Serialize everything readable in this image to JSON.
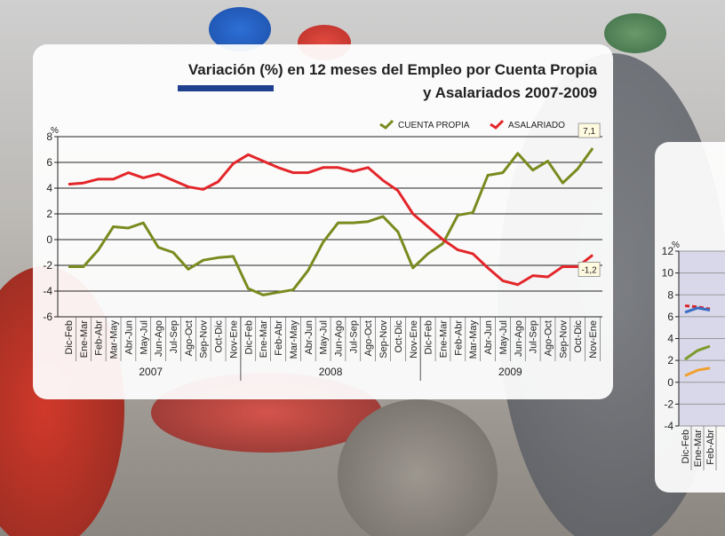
{
  "chart_data": [
    {
      "type": "line",
      "title": "Variación (%) en 12 meses del Empleo por Cuenta Propia",
      "subtitle": "y Asalariados 2007-2009",
      "y_unit": "%",
      "categories": [
        "Dic-Feb",
        "Ene-Mar",
        "Feb-Abr",
        "Mar-May",
        "Abr-Jun",
        "May-Jul",
        "Jun-Ago",
        "Jul-Sep",
        "Ago-Oct",
        "Sep-Nov",
        "Oct-Dic",
        "Nov-Ene",
        "Dic-Feb",
        "Ene-Mar",
        "Feb-Abr",
        "Mar-May",
        "Abr-Jun",
        "May-Jul",
        "Jun-Ago",
        "Jul-Sep",
        "Ago-Oct",
        "Sep-Nov",
        "Oct-Dic",
        "Nov-Ene",
        "Dic-Feb",
        "Ene-Mar",
        "Feb-Abr",
        "Mar-May",
        "Abr-Jun",
        "May-Jul",
        "Jun-Ago",
        "Jul-Sep",
        "Ago-Oct",
        "Sep-Nov",
        "Oct-Dic",
        "Nov-Ene"
      ],
      "year_labels": [
        "2007",
        "2008",
        "2009"
      ],
      "series": [
        {
          "name": "CUENTA PROPIA",
          "color": "#7a8a1e",
          "values": [
            -2.1,
            -2.1,
            -0.8,
            1.0,
            0.9,
            1.3,
            -0.6,
            -1.0,
            -2.3,
            -1.6,
            -1.4,
            -1.3,
            -3.8,
            -4.3,
            -4.1,
            -3.9,
            -2.4,
            -0.2,
            1.3,
            1.3,
            1.4,
            1.8,
            0.6,
            -2.2,
            -1.1,
            -0.3,
            1.9,
            2.1,
            5.0,
            5.2,
            6.7,
            5.4,
            6.1,
            4.4,
            5.5,
            7.1
          ],
          "value_labels": [
            null,
            null,
            null,
            null,
            null,
            null,
            null,
            null,
            null,
            null,
            null,
            null,
            null,
            null,
            null,
            null,
            null,
            null,
            null,
            null,
            null,
            null,
            null,
            null,
            null,
            null,
            null,
            null,
            null,
            null,
            null,
            null,
            null,
            null,
            null,
            "7,1"
          ]
        },
        {
          "name": "ASALARIADO",
          "color": "#e3262a",
          "values": [
            4.3,
            4.4,
            4.7,
            4.7,
            5.2,
            4.8,
            5.1,
            4.6,
            4.1,
            3.9,
            4.5,
            5.9,
            6.6,
            6.1,
            5.6,
            5.2,
            5.2,
            5.6,
            5.6,
            5.3,
            5.6,
            4.6,
            3.8,
            2.0,
            1.0,
            0.0,
            -0.8,
            -1.1,
            -2.2,
            -3.2,
            -3.5,
            -2.8,
            -2.9,
            -2.1,
            -2.1,
            -1.2
          ],
          "value_labels": [
            null,
            null,
            null,
            null,
            null,
            null,
            null,
            null,
            null,
            null,
            null,
            null,
            null,
            null,
            null,
            null,
            null,
            null,
            null,
            null,
            null,
            null,
            null,
            null,
            null,
            null,
            null,
            null,
            null,
            null,
            null,
            null,
            null,
            null,
            null,
            "-1,2"
          ]
        }
      ],
      "ylim": [
        -6,
        8
      ],
      "yticks": [
        -6,
        -4,
        -2,
        0,
        2,
        4,
        6,
        8
      ],
      "grid": true,
      "legend": "top-right"
    },
    {
      "type": "line",
      "y_unit": "%",
      "categories": [
        "Dic-Feb",
        "Ene-Mar",
        "Feb-Abr"
      ],
      "series": [
        {
          "color": "#d9232a",
          "dashed": true,
          "values": [
            7.0,
            6.9,
            6.7
          ]
        },
        {
          "color": "#3a6fc4",
          "values": [
            6.4,
            6.8,
            6.6
          ]
        },
        {
          "color": "#7d9a2a",
          "values": [
            2.1,
            2.9,
            3.3
          ]
        },
        {
          "color": "#f0a030",
          "values": [
            0.6,
            1.1,
            1.3
          ]
        }
      ],
      "ylim": [
        -4,
        12
      ],
      "yticks": [
        -4,
        -2,
        0,
        2,
        4,
        6,
        8,
        10,
        12
      ],
      "grid": true
    }
  ]
}
